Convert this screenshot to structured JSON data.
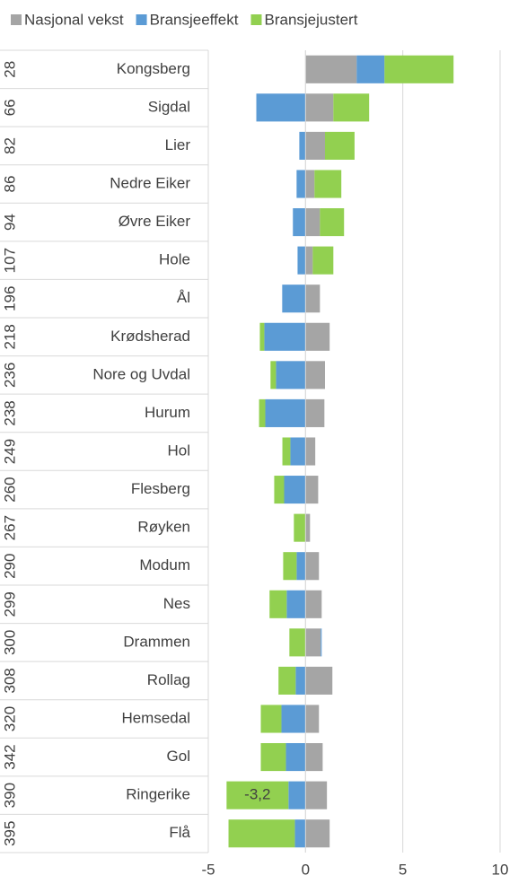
{
  "chart_data": {
    "type": "stacked-bar-horizontal",
    "ranks": [
      "28",
      "66",
      "82",
      "86",
      "94",
      "107",
      "196",
      "218",
      "236",
      "238",
      "249",
      "260",
      "267",
      "290",
      "299",
      "300",
      "308",
      "320",
      "342",
      "390",
      "395"
    ],
    "categories": [
      "Kongsberg",
      "Sigdal",
      "Lier",
      "Nedre Eiker",
      "Øvre Eiker",
      "Hole",
      "Ål",
      "Krødsherad",
      "Nore og Uvdal",
      "Hurum",
      "Hol",
      "Flesberg",
      "Røyken",
      "Modum",
      "Nes",
      "Drammen",
      "Rollag",
      "Hemsedal",
      "Gol",
      "Ringerike",
      "Flå"
    ],
    "series": [
      {
        "name": "Nasjonal vekst",
        "color": "#a5a5a5",
        "values": [
          2.63,
          1.43,
          1.0,
          0.46,
          0.74,
          0.37,
          0.74,
          1.24,
          1.0,
          0.97,
          0.5,
          0.65,
          0.23,
          0.69,
          0.83,
          0.78,
          1.38,
          0.69,
          0.88,
          1.1,
          1.24
        ]
      },
      {
        "name": "Bransjeeffekt",
        "color": "#5b9bd5",
        "values": [
          1.43,
          -2.53,
          -0.32,
          -0.46,
          -0.65,
          -0.41,
          -1.2,
          -2.12,
          -1.52,
          -2.07,
          -0.78,
          -1.1,
          0,
          -0.46,
          -0.97,
          0.05,
          -0.51,
          -1.24,
          -1.01,
          -0.88,
          -0.55
        ]
      },
      {
        "name": "Bransjejustert",
        "color": "#92d050",
        "values": [
          3.55,
          1.84,
          1.52,
          1.38,
          1.24,
          1.06,
          0,
          -0.23,
          -0.28,
          -0.32,
          -0.41,
          -0.51,
          -0.6,
          -0.69,
          -0.88,
          -0.83,
          -0.88,
          -1.06,
          -1.29,
          -3.18,
          -3.41
        ],
        "value_labels": [
          null,
          null,
          null,
          null,
          null,
          null,
          null,
          null,
          null,
          null,
          null,
          null,
          null,
          null,
          null,
          null,
          null,
          null,
          null,
          "-3,2",
          null
        ]
      }
    ],
    "xlim": [
      -5,
      10
    ],
    "xticks": [
      -5,
      0,
      5,
      10
    ],
    "grid": true
  }
}
